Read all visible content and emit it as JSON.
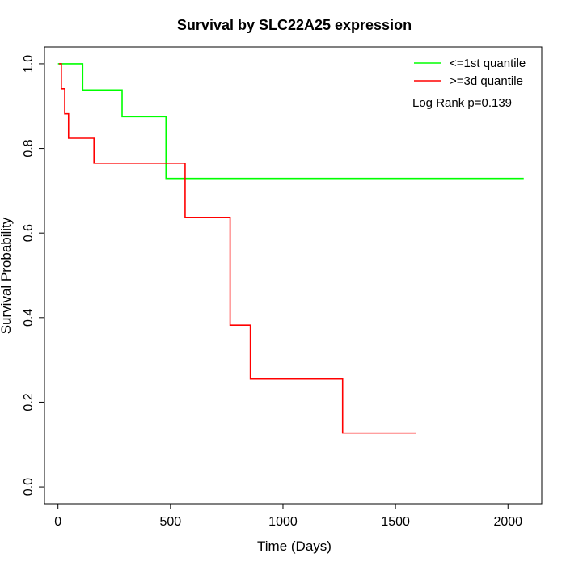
{
  "chart_data": {
    "type": "line",
    "title": "Survival by SLC22A25 expression",
    "xlabel": "Time (Days)",
    "ylabel": "Survival Probability",
    "xlim": [
      -60,
      2150
    ],
    "ylim": [
      -0.04,
      1.04
    ],
    "x_ticks": [
      0,
      500,
      1000,
      1500,
      2000
    ],
    "y_ticks": [
      0.0,
      0.2,
      0.4,
      0.6,
      0.8,
      1.0
    ],
    "x_tick_labels": [
      "0",
      "500",
      "1000",
      "1500",
      "2000"
    ],
    "y_tick_labels": [
      "0.0",
      "0.2",
      "0.4",
      "0.6",
      "0.8",
      "1.0"
    ],
    "grid": false,
    "legend_position": "top-right",
    "series": [
      {
        "name": "<=1st quantile",
        "color": "#00ff00",
        "step": true,
        "x": [
          0,
          110,
          285,
          480,
          2070
        ],
        "y": [
          1.0,
          0.938,
          0.875,
          0.729,
          0.729
        ]
      },
      {
        "name": ">=3d quantile",
        "color": "#ff0000",
        "step": true,
        "x": [
          5,
          15,
          30,
          47,
          160,
          565,
          765,
          855,
          1265,
          1590
        ],
        "y": [
          1.0,
          0.941,
          0.882,
          0.824,
          0.765,
          0.637,
          0.382,
          0.255,
          0.127,
          0.127
        ]
      }
    ],
    "annotations": [
      {
        "text": "Log Rank p=0.139"
      }
    ]
  }
}
